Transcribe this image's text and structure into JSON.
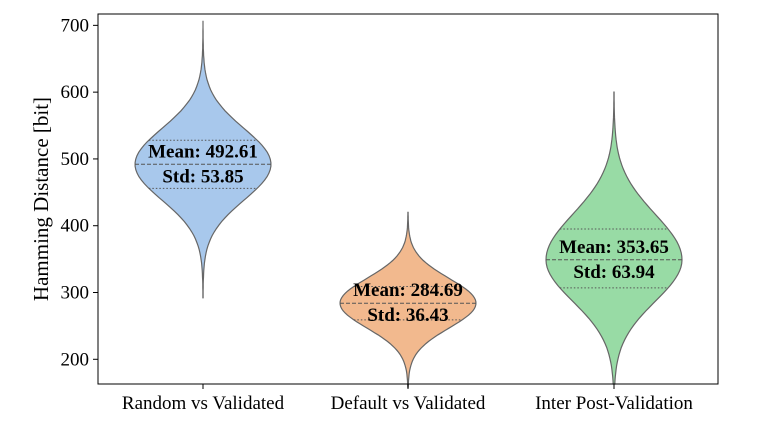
{
  "chart_data": {
    "type": "violin",
    "title": "",
    "xlabel": "",
    "ylabel": "Hamming Distance [bit]",
    "ylim": [
      163,
      717
    ],
    "yticks": [
      200,
      300,
      400,
      500,
      600,
      700
    ],
    "grid": false,
    "legend": "none",
    "categories": [
      "Random vs Validated",
      "Default vs Validated",
      "Inter Post-Validation"
    ],
    "series": [
      {
        "category": "Random vs Validated",
        "color": "#a8c8ec",
        "mean": 492.61,
        "std": 53.85,
        "mean_label": "Mean: 492.61",
        "std_label": "Std: 53.85",
        "min": 292,
        "max": 707,
        "q1": 456,
        "median": 492,
        "q3": 528
      },
      {
        "category": "Default vs Validated",
        "color": "#f2b98e",
        "mean": 284.69,
        "std": 36.43,
        "mean_label": "Mean: 284.69",
        "std_label": "Std: 36.43",
        "min": 158,
        "max": 420,
        "q1": 259,
        "median": 284,
        "q3": 309
      },
      {
        "category": "Inter Post-Validation",
        "color": "#98dba5",
        "mean": 353.65,
        "std": 63.94,
        "mean_label": "Mean: 353.65",
        "std_label": "Std: 63.94",
        "min": 163,
        "max": 600,
        "q1": 307,
        "median": 349,
        "q3": 395
      }
    ]
  }
}
